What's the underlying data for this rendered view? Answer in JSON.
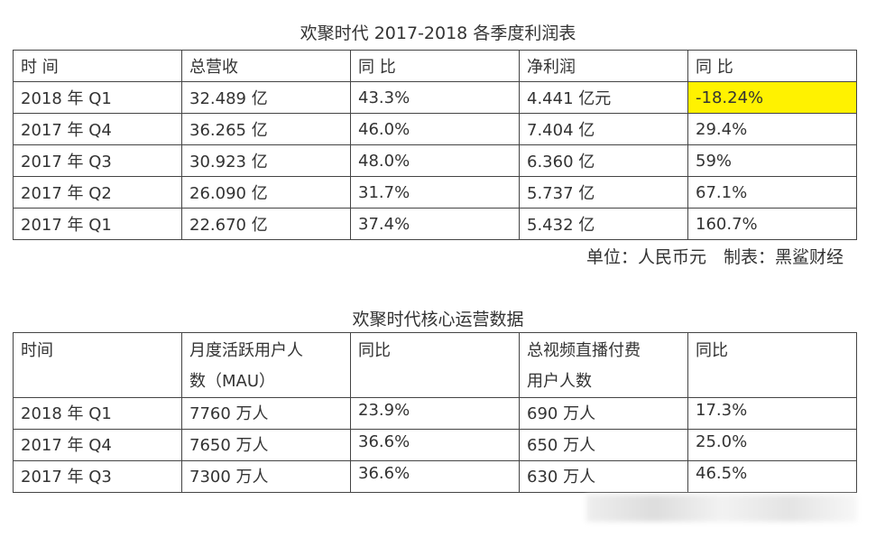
{
  "table1": {
    "title": "欢聚时代 2017-2018 各季度利润表",
    "header": [
      "时 间",
      "总营收",
      "同 比",
      "净利润",
      "同 比"
    ],
    "rows": [
      [
        "2018 年 Q1",
        "32.489 亿",
        "43.3%",
        "4.441 亿元",
        "-18.24%"
      ],
      [
        "2017 年 Q4",
        "36.265 亿",
        "46.0%",
        "7.404 亿",
        "29.4%"
      ],
      [
        "2017 年 Q3",
        "30.923 亿",
        "48.0%",
        "6.360 亿",
        "59%"
      ],
      [
        "2017 年 Q2",
        "26.090 亿",
        "31.7%",
        "5.737 亿",
        "67.1%"
      ],
      [
        "2017 年 Q1",
        "22.670 亿",
        "37.4%",
        "5.432 亿",
        "160.7%"
      ]
    ],
    "note": "单位：人民币元　制表：黑鲨财经"
  },
  "table2": {
    "title": "欢聚时代核心运营数据",
    "header": [
      "时间",
      "月度活跃用户人数（MAU）",
      "同比",
      "总视频直播付费用户人数",
      "同比"
    ],
    "rows": [
      [
        "2018 年 Q1",
        "7760 万人",
        "23.9%",
        "690 万人",
        "17.3%"
      ],
      [
        "2017 年 Q4",
        "7650 万人",
        "36.6%",
        "650 万人",
        "25.0%"
      ],
      [
        "2017 年 Q3",
        "7300 万人",
        "36.6%",
        "630 万人",
        "46.5%"
      ]
    ]
  }
}
